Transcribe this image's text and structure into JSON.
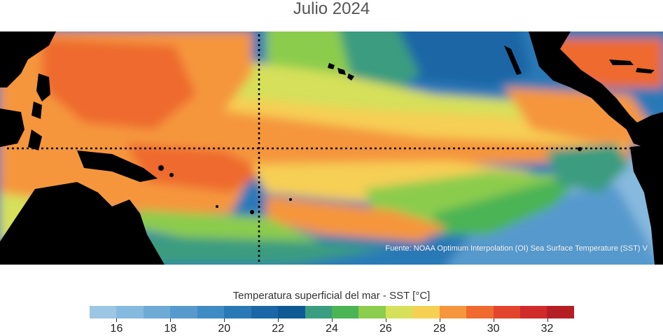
{
  "title": "Julio 2024",
  "source": "Fuente: NOAA Optimum Interpolation (OI) Sea Surface Temperature (SST) V",
  "colorbar": {
    "title": "Temperatura superficial del mar - SST  [°C]",
    "min": 15,
    "max": 33,
    "colors": [
      "#9cc6e4",
      "#86b9de",
      "#6eaad6",
      "#569acd",
      "#3f8bc4",
      "#2a79b7",
      "#1b66a6",
      "#0f5996",
      "#3a9c80",
      "#4bb454",
      "#8ccc4e",
      "#d6e05a",
      "#f6cf55",
      "#f5963d",
      "#ee6a2e",
      "#e2452b",
      "#d02a2a",
      "#b51f24"
    ],
    "tick_values": [
      16,
      18,
      20,
      22,
      24,
      26,
      28,
      30,
      32
    ],
    "tick_labels": [
      "16",
      "18",
      "20",
      "22",
      "24",
      "26",
      "28",
      "30",
      "32"
    ]
  }
}
